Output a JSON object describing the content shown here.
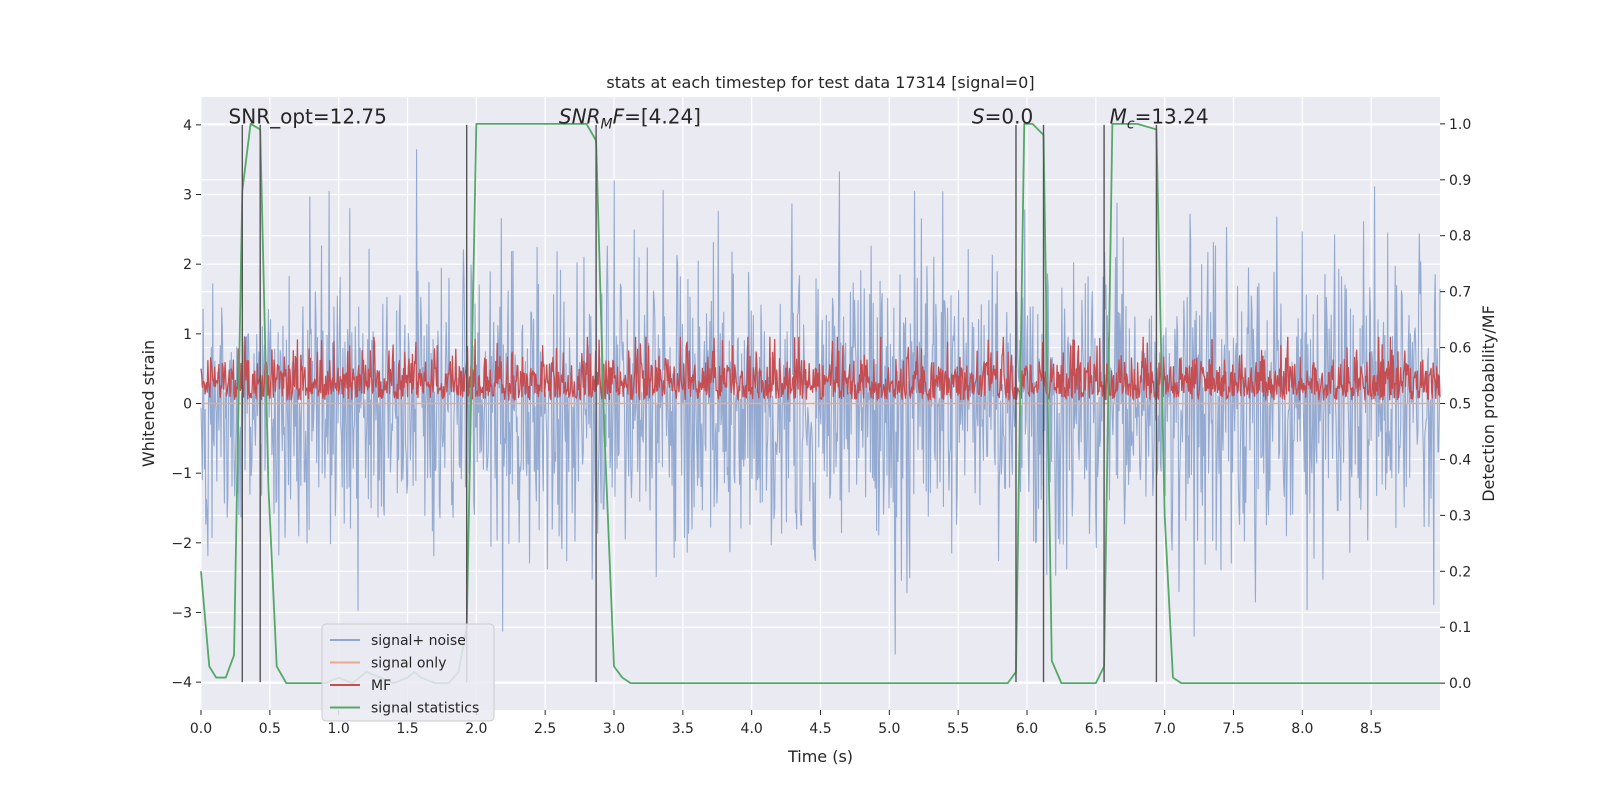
{
  "chart_data": {
    "type": "line",
    "title": "stats at each timestep for test data 17314 [signal=0]",
    "xlabel": "Time (s)",
    "ylabel": "Whitened strain",
    "y2label": "Detection probability/MF",
    "xlim": [
      0.0,
      9.0
    ],
    "ylim": [
      -4.4,
      4.4
    ],
    "y2lim": [
      -0.048,
      1.048
    ],
    "xticks": [
      0.0,
      0.5,
      1.0,
      1.5,
      2.0,
      2.5,
      3.0,
      3.5,
      4.0,
      4.5,
      5.0,
      5.5,
      6.0,
      6.5,
      7.0,
      7.5,
      8.0,
      8.5
    ],
    "xtick_labels": [
      "0.0",
      "0.5",
      "1.0",
      "1.5",
      "2.0",
      "2.5",
      "3.0",
      "3.5",
      "4.0",
      "4.5",
      "5.0",
      "5.5",
      "6.0",
      "6.5",
      "7.0",
      "7.5",
      "8.0",
      "8.5"
    ],
    "yticks": [
      -4,
      -3,
      -2,
      -1,
      0,
      1,
      2,
      3,
      4
    ],
    "ytick_labels": [
      "−4",
      "−3",
      "−2",
      "−1",
      "0",
      "1",
      "2",
      "3",
      "4"
    ],
    "y2ticks": [
      0.0,
      0.1,
      0.2,
      0.3,
      0.4,
      0.5,
      0.6,
      0.7,
      0.8,
      0.9,
      1.0
    ],
    "y2tick_labels": [
      "0.0",
      "0.1",
      "0.2",
      "0.3",
      "0.4",
      "0.5",
      "0.6",
      "0.7",
      "0.8",
      "0.9",
      "1.0"
    ],
    "grid": true,
    "legend_position": "lower-left",
    "annotations": [
      {
        "label": "SNR_opt=12.75",
        "x": 0.2,
        "y": 4.05
      },
      {
        "label": "SNR",
        "sub": "M",
        "rest": "F=[4.24]",
        "italic": true,
        "x": 2.6,
        "y": 4.05
      },
      {
        "label": "S",
        "sub": "",
        "rest": "=0.0",
        "italic": true,
        "x": 5.6,
        "y": 4.05
      },
      {
        "label": "M",
        "sub": "c",
        "rest": "=13.24",
        "italic": true,
        "x": 6.6,
        "y": 4.05
      }
    ],
    "vlines": [
      0.3,
      0.43,
      1.93,
      2.87,
      5.92,
      6.12,
      6.56,
      6.94
    ],
    "series": [
      {
        "name": "signal+ noise",
        "color": "#8fa6cf",
        "axis": "left",
        "kind": "noise",
        "sigma": 1.05,
        "n": 1800
      },
      {
        "name": "signal only",
        "color": "#e8a98f",
        "axis": "left",
        "x": [
          0.0,
          9.0
        ],
        "y": [
          0.0,
          0.0
        ]
      },
      {
        "name": "MF",
        "color": "#c44e52",
        "axis": "left",
        "kind": "mf",
        "base": 0.05,
        "scale": 0.35,
        "n": 1800
      },
      {
        "name": "signal statistics",
        "color": "#55a868",
        "axis": "right",
        "x": [
          0.0,
          0.06,
          0.11,
          0.18,
          0.24,
          0.3,
          0.36,
          0.43,
          0.49,
          0.55,
          0.62,
          0.7,
          0.8,
          0.9,
          1.0,
          1.1,
          1.2,
          1.3,
          1.4,
          1.5,
          1.55,
          1.6,
          1.7,
          1.8,
          1.87,
          1.93,
          2.0,
          2.2,
          2.4,
          2.6,
          2.8,
          2.87,
          2.93,
          3.0,
          3.06,
          3.12,
          3.2,
          3.5,
          4.0,
          4.5,
          5.0,
          5.5,
          5.86,
          5.92,
          5.98,
          6.04,
          6.12,
          6.18,
          6.25,
          6.35,
          6.5,
          6.56,
          6.62,
          6.8,
          6.94,
          7.0,
          7.06,
          7.12,
          7.5,
          8.0,
          8.5,
          9.0
        ],
        "y": [
          0.2,
          0.03,
          0.01,
          0.01,
          0.05,
          0.88,
          1.0,
          0.99,
          0.35,
          0.03,
          0.0,
          0.0,
          0.0,
          0.0,
          0.01,
          0.0,
          0.02,
          0.01,
          0.0,
          0.01,
          0.02,
          0.01,
          0.0,
          0.0,
          0.02,
          0.1,
          1.0,
          1.0,
          1.0,
          1.0,
          1.0,
          0.97,
          0.45,
          0.03,
          0.01,
          0.0,
          0.0,
          0.0,
          0.0,
          0.0,
          0.0,
          0.0,
          0.0,
          0.02,
          1.0,
          1.0,
          0.98,
          0.04,
          0.0,
          0.0,
          0.0,
          0.03,
          1.0,
          1.0,
          0.99,
          0.3,
          0.01,
          0.0,
          0.0,
          0.0,
          0.0,
          0.0
        ]
      }
    ]
  }
}
